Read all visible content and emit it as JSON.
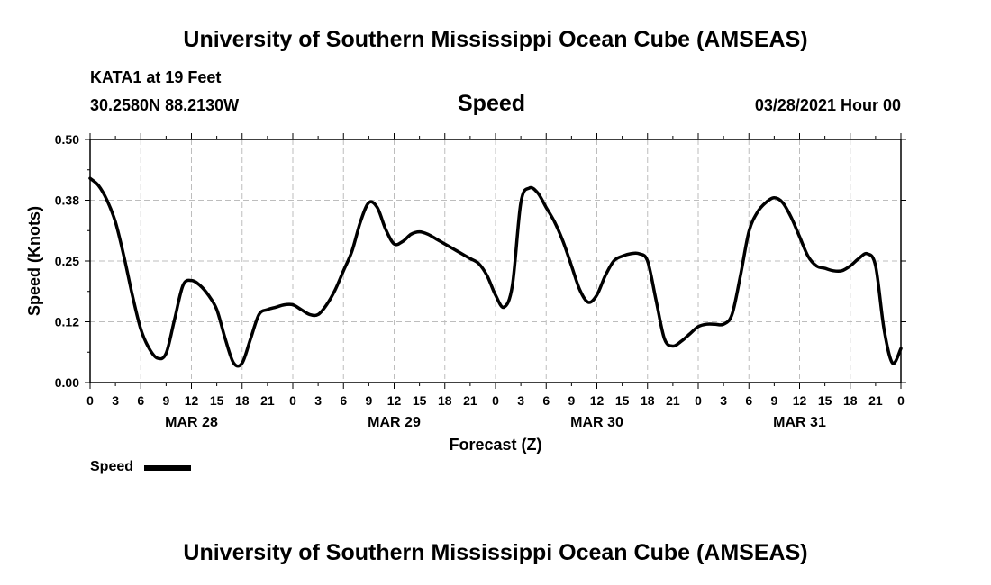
{
  "header": {
    "title_top": "University of Southern Mississippi Ocean Cube (AMSEAS)",
    "station": "KATA1 at 19 Feet",
    "coords": "30.2580N  88.2130W",
    "variable": "Speed",
    "datetime": "03/28/2021 Hour 00"
  },
  "footer": {
    "title_bottom": "University of Southern Mississippi Ocean Cube (AMSEAS)"
  },
  "legend": {
    "label": "Speed"
  },
  "chart_data": {
    "type": "line",
    "title": "Speed",
    "xlabel": "Forecast (Z)",
    "ylabel": "Speed (Knots)",
    "ylim": [
      0,
      0.5
    ],
    "xlim": [
      0,
      96
    ],
    "grid": true,
    "y_ticks": [
      0.0,
      0.125,
      0.25,
      0.375,
      0.5
    ],
    "y_tick_labels": [
      "0.00",
      "0.12",
      "0.25",
      "0.38",
      "0.50"
    ],
    "x_ticks": [
      0,
      3,
      6,
      9,
      12,
      15,
      18,
      21,
      24,
      27,
      30,
      33,
      36,
      39,
      42,
      45,
      48,
      51,
      54,
      57,
      60,
      63,
      66,
      69,
      72,
      75,
      78,
      81,
      84,
      87,
      90,
      93,
      96
    ],
    "x_tick_labels": [
      "0",
      "3",
      "6",
      "9",
      "12",
      "15",
      "18",
      "21",
      "0",
      "3",
      "6",
      "9",
      "12",
      "15",
      "18",
      "21",
      "0",
      "3",
      "6",
      "9",
      "12",
      "15",
      "18",
      "21",
      "0",
      "3",
      "6",
      "9",
      "12",
      "15",
      "18",
      "21",
      "0"
    ],
    "date_labels": [
      {
        "x": 12,
        "label": "MAR 28"
      },
      {
        "x": 36,
        "label": "MAR 29"
      },
      {
        "x": 60,
        "label": "MAR 30"
      },
      {
        "x": 84,
        "label": "MAR 31"
      }
    ],
    "series": [
      {
        "name": "Speed",
        "color": "#000000",
        "x": [
          0,
          1,
          2,
          3,
          4,
          5,
          6,
          7,
          8,
          9,
          10,
          11,
          12,
          13,
          14,
          15,
          16,
          17,
          18,
          19,
          20,
          21,
          22,
          23,
          24,
          25,
          26,
          27,
          28,
          29,
          30,
          31,
          32,
          33,
          34,
          35,
          36,
          37,
          38,
          39,
          40,
          41,
          42,
          43,
          44,
          45,
          46,
          47,
          48,
          49,
          50,
          51,
          52,
          53,
          54,
          55,
          56,
          57,
          58,
          59,
          60,
          61,
          62,
          63,
          64,
          65,
          66,
          67,
          68,
          69,
          70,
          71,
          72,
          73,
          74,
          75,
          76,
          77,
          78,
          79,
          80,
          81,
          82,
          83,
          84,
          85,
          86,
          87,
          88,
          89,
          90,
          91,
          92,
          93,
          94,
          95,
          96
        ],
        "values": [
          0.42,
          0.405,
          0.375,
          0.33,
          0.26,
          0.18,
          0.11,
          0.07,
          0.05,
          0.06,
          0.13,
          0.2,
          0.21,
          0.2,
          0.18,
          0.15,
          0.09,
          0.04,
          0.04,
          0.09,
          0.14,
          0.15,
          0.155,
          0.16,
          0.16,
          0.15,
          0.14,
          0.14,
          0.16,
          0.19,
          0.23,
          0.27,
          0.33,
          0.37,
          0.36,
          0.315,
          0.285,
          0.29,
          0.305,
          0.31,
          0.305,
          0.295,
          0.285,
          0.275,
          0.265,
          0.255,
          0.245,
          0.22,
          0.18,
          0.155,
          0.2,
          0.37,
          0.4,
          0.39,
          0.36,
          0.33,
          0.29,
          0.24,
          0.19,
          0.165,
          0.18,
          0.22,
          0.25,
          0.26,
          0.265,
          0.265,
          0.25,
          0.17,
          0.09,
          0.075,
          0.085,
          0.1,
          0.115,
          0.12,
          0.12,
          0.12,
          0.14,
          0.22,
          0.31,
          0.35,
          0.37,
          0.38,
          0.37,
          0.34,
          0.3,
          0.26,
          0.24,
          0.235,
          0.23,
          0.23,
          0.24,
          0.255,
          0.265,
          0.24,
          0.11,
          0.04,
          0.07
        ]
      }
    ]
  }
}
